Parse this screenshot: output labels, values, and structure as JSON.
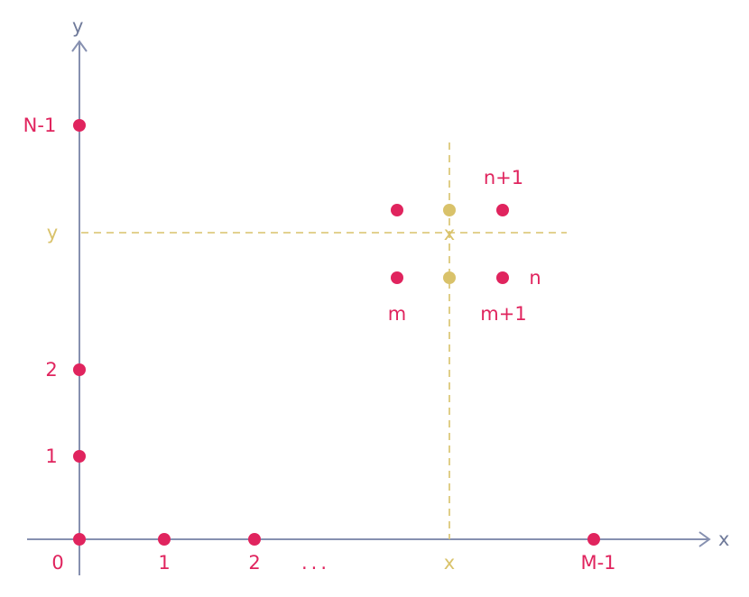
{
  "axes": {
    "x_label": "x",
    "y_label": "y",
    "axis_color": "#8690b0"
  },
  "x_ticks": {
    "origin": "0",
    "t1": "1",
    "t2": "2",
    "ellipsis": "...",
    "last": "M-1"
  },
  "y_ticks": {
    "t1": "1",
    "t2": "2",
    "last": "N-1"
  },
  "sample_point": {
    "x_label": "x",
    "y_label": "y",
    "color": "#d9c26a"
  },
  "neighbors": {
    "m": "m",
    "m_plus_1": "m+1",
    "n": "n",
    "n_plus_1": "n+1",
    "color": "#e0245e"
  }
}
